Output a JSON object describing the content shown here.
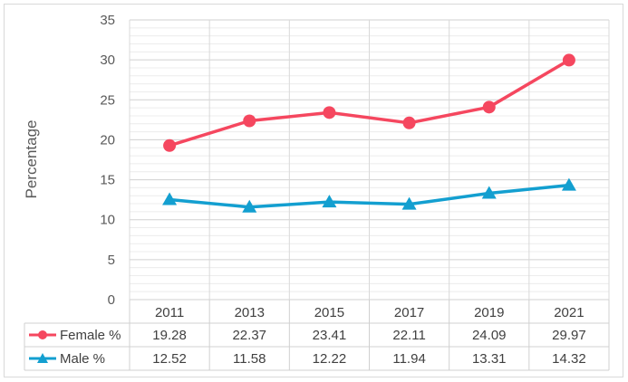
{
  "chart_data": {
    "type": "line",
    "title": "",
    "xlabel": "",
    "ylabel": "Percentage",
    "categories": [
      "2011",
      "2013",
      "2015",
      "2017",
      "2019",
      "2021"
    ],
    "ylim": [
      0,
      35
    ],
    "yticks": [
      "0",
      "5",
      "10",
      "15",
      "20",
      "25",
      "30",
      "35"
    ],
    "grid": true,
    "legend": "data-table",
    "series": [
      {
        "name": "Female %",
        "values": [
          19.28,
          22.37,
          23.41,
          22.11,
          24.09,
          29.97
        ],
        "labels": [
          "19.28",
          "22.37",
          "23.41",
          "22.11",
          "24.09",
          "29.97"
        ],
        "color": "#f5475f",
        "marker": "circle"
      },
      {
        "name": "Male %",
        "values": [
          12.52,
          11.58,
          12.22,
          11.94,
          13.31,
          14.32
        ],
        "labels": [
          "12.52",
          "11.58",
          "12.22",
          "11.94",
          "13.31",
          "14.32"
        ],
        "color": "#139fd0",
        "marker": "triangle"
      }
    ]
  }
}
